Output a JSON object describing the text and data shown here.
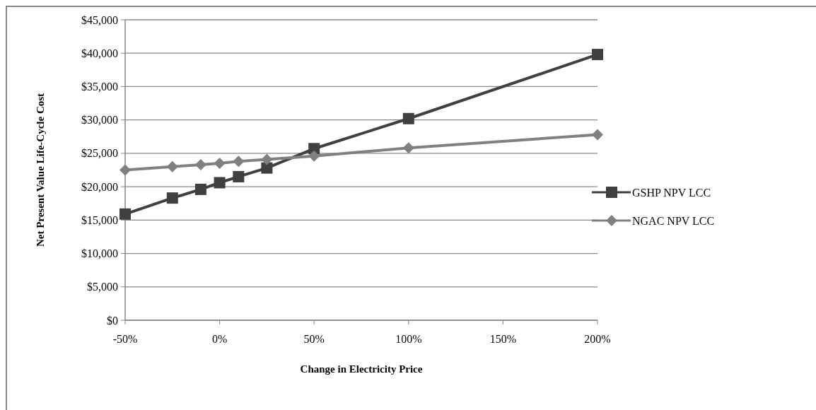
{
  "chart_data": {
    "type": "line",
    "xlabel": "Change in Electricity Price",
    "ylabel": "Net Present Value Life-Cycle Cost",
    "x": [
      -50,
      -25,
      -10,
      0,
      10,
      25,
      50,
      100,
      200
    ],
    "series": [
      {
        "name": "GSHP NPV LCC",
        "color": "#404040",
        "marker": "square",
        "values": [
          15900,
          18300,
          19600,
          20600,
          21500,
          22800,
          25700,
          30200,
          39800
        ]
      },
      {
        "name": "NGAC NPV LCC",
        "color": "#808080",
        "marker": "diamond",
        "values": [
          22500,
          23000,
          23300,
          23500,
          23800,
          24100,
          24600,
          25800,
          27800
        ]
      }
    ],
    "xlim": [
      -50,
      200
    ],
    "xticks": [
      {
        "value": -50,
        "label": "-50%"
      },
      {
        "value": 0,
        "label": "0%"
      },
      {
        "value": 50,
        "label": "50%"
      },
      {
        "value": 100,
        "label": "100%"
      },
      {
        "value": 150,
        "label": "150%"
      },
      {
        "value": 200,
        "label": "200%"
      }
    ],
    "ylim": [
      0,
      45000
    ],
    "yticks": [
      {
        "value": 0,
        "label": "$0"
      },
      {
        "value": 5000,
        "label": "$5,000"
      },
      {
        "value": 10000,
        "label": "$10,000"
      },
      {
        "value": 15000,
        "label": "$15,000"
      },
      {
        "value": 20000,
        "label": "$20,000"
      },
      {
        "value": 25000,
        "label": "$25,000"
      },
      {
        "value": 30000,
        "label": "$30,000"
      },
      {
        "value": 35000,
        "label": "$35,000"
      },
      {
        "value": 40000,
        "label": "$40,000"
      },
      {
        "value": 45000,
        "label": "$45,000"
      }
    ],
    "grid": "y",
    "legend": "right",
    "line_style": "solid"
  }
}
